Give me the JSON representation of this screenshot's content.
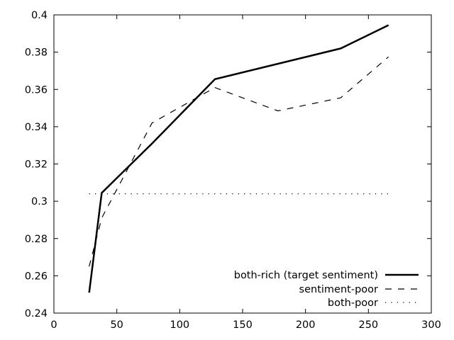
{
  "chart_data": {
    "type": "line",
    "title": "",
    "xlabel": "",
    "ylabel": "",
    "xlim": [
      0,
      300
    ],
    "ylim": [
      0.24,
      0.4
    ],
    "x_ticks": [
      0,
      50,
      100,
      150,
      200,
      250,
      300
    ],
    "x_tick_labels": [
      "0",
      "50",
      "100",
      "150",
      "200",
      "250",
      "300"
    ],
    "y_ticks": [
      0.24,
      0.26,
      0.28,
      0.3,
      0.32,
      0.34,
      0.36,
      0.38,
      0.4
    ],
    "y_tick_labels": [
      "0.24",
      "0.26",
      "0.28",
      "0.3",
      "0.32",
      "0.34",
      "0.36",
      "0.38",
      "0.4"
    ],
    "grid": false,
    "legend_position": "bottom-right",
    "series": [
      {
        "name": "both-rich (target sentiment)",
        "style": "solid",
        "width": 2.5,
        "color": "#000000",
        "x": [
          28,
          38,
          78,
          128,
          228,
          266
        ],
        "y": [
          0.251,
          0.3045,
          0.331,
          0.3655,
          0.382,
          0.3945
        ]
      },
      {
        "name": "sentiment-poor",
        "style": "dashed",
        "width": 1.2,
        "color": "#000000",
        "x": [
          28,
          38,
          78,
          128,
          178,
          228,
          266
        ],
        "y": [
          0.265,
          0.291,
          0.342,
          0.361,
          0.3485,
          0.3555,
          0.3775
        ]
      },
      {
        "name": "both-poor",
        "style": "dotted",
        "width": 1.2,
        "color": "#000000",
        "x": [
          28,
          266
        ],
        "y": [
          0.304,
          0.304
        ]
      }
    ]
  }
}
